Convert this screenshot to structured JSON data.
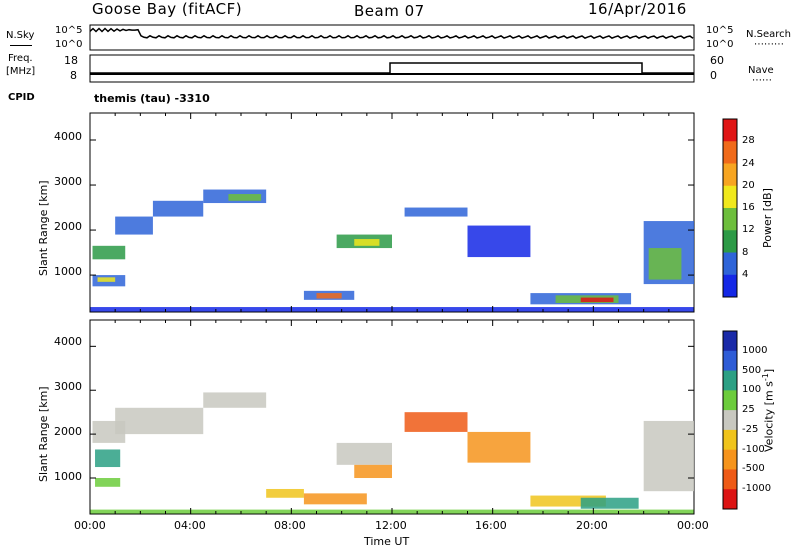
{
  "header": {
    "station": "Goose Bay (fitACF)",
    "beam": "Beam 07",
    "date": "16/Apr/2016"
  },
  "noise_panel": {
    "left_label": "N.Sky",
    "right_label": "N.Search",
    "ticks": [
      "10^5",
      "10^0"
    ]
  },
  "freq_panel": {
    "left_label_top": "Freq.",
    "left_label_bottom": "[MHz]",
    "left_ticks": [
      "18",
      "8"
    ],
    "right_label": "Nave",
    "right_ticks": [
      "60",
      "0"
    ]
  },
  "cpid": {
    "label": "CPID",
    "program": "themis (tau) -3310"
  },
  "chart_data": [
    {
      "type": "heatmap",
      "name": "power",
      "ylabel": "Slant Range [km]",
      "yticks": [
        1000,
        2000,
        3000,
        4000
      ],
      "ylim": [
        180,
        4600
      ],
      "xlim_hours": [
        0,
        24
      ],
      "colorbar": {
        "label": "Power [dB]",
        "ticks": [
          "4",
          "8",
          "12",
          "16",
          "20",
          "24",
          "28"
        ],
        "colors": [
          "#1428e6",
          "#2e64d8",
          "#2c9a46",
          "#6dbe3c",
          "#f0e81c",
          "#f7a521",
          "#f06a1a",
          "#e01515"
        ]
      }
    },
    {
      "type": "heatmap",
      "name": "velocity",
      "ylabel": "Slant Range [km]",
      "yticks": [
        1000,
        2000,
        3000,
        4000
      ],
      "ylim": [
        180,
        4600
      ],
      "xlim_hours": [
        0,
        24
      ],
      "colorbar": {
        "label": "Velocity [m s",
        "label_sup": "-1",
        "label_end": "]",
        "ticks": [
          "1000",
          "500",
          "100",
          "25",
          "-25",
          "-100",
          "-500",
          "-1000"
        ],
        "colors": [
          "#1a2aa8",
          "#2e5cd6",
          "#2ca084",
          "#6ccc3c",
          "#c8c8c0",
          "#f0c41c",
          "#f6941c",
          "#ee5a16",
          "#dc1414"
        ]
      }
    }
  ],
  "xaxis": {
    "ticks": [
      "00:00",
      "04:00",
      "08:00",
      "12:00",
      "16:00",
      "20:00",
      "00:00"
    ],
    "label": "Time UT"
  }
}
